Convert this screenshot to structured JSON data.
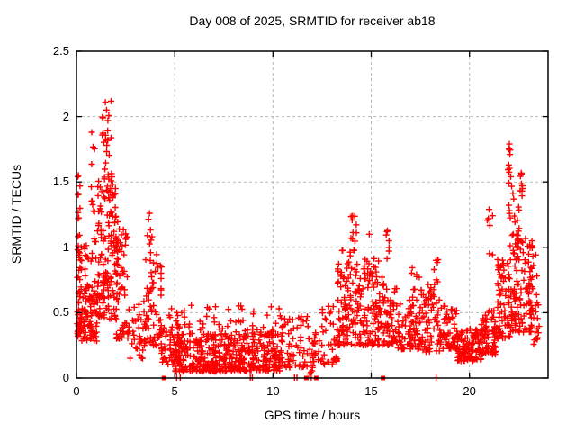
{
  "title": "Day 008 of 2025, SRMTID for receiver ab18",
  "x_axis": {
    "label": "GPS time / hours",
    "tick_values": [
      0,
      5,
      10,
      15,
      20
    ],
    "tick_labels": [
      "0",
      "5",
      "10",
      "15",
      "20"
    ],
    "range": [
      0,
      24
    ]
  },
  "y_axis": {
    "label": "SRMTID / TECUs",
    "tick_values": [
      0,
      0.5,
      1,
      1.5,
      2,
      2.5
    ],
    "tick_labels": [
      "0",
      "0.5",
      "1",
      "1.5",
      "2",
      "2.5"
    ],
    "range": [
      0,
      2.5
    ]
  },
  "colors": {
    "marker": "#ff0000",
    "grid": "#b8b8b8",
    "axis": "#000000",
    "background": "#ffffff"
  },
  "chart_data": {
    "type": "scatter",
    "title": "Day 008 of 2025, SRMTID for receiver ab18",
    "xlabel": "GPS time / hours",
    "ylabel": "SRMTID / TECUs",
    "xlim": [
      0,
      24
    ],
    "ylim": [
      0,
      2.5
    ],
    "grid": "dashed gray at x=5,10,15,20 and y=0.5,1,1.5,2",
    "legend": "none",
    "marker": "plus",
    "marker_color": "#ff0000",
    "description": "Dense red '+' scatter of SRMTID vs GPS time. High variance clusters near 0-2.5h (peak ~2.1 TECUs at ~1.5h) and 21.5-23.5h (peak ~1.8 at ~22h); dense low band 0.05-0.35 TECUs between 5h and 10h; secondary bumps at ~3.7h (1.26), ~14h (1.24), ~15.8h (1.12), ~21h (1.29). Red filled squares and small vertical marks sit on the y=0 axis line. Clusters below give digitized point-density regions [x0,x1]x[y0,y1] with point count n and bottom-bias exponent.",
    "notable_points": [
      [
        0.1,
        1.55
      ],
      [
        0.78,
        1.88
      ],
      [
        1.47,
        2.11
      ],
      [
        1.53,
        2.05
      ],
      [
        1.6,
        1.97
      ],
      [
        3.72,
        1.26
      ],
      [
        14.05,
        1.24
      ],
      [
        14.9,
        1.1
      ],
      [
        15.8,
        1.12
      ],
      [
        18.3,
        0.9
      ],
      [
        21.0,
        1.29
      ],
      [
        22.03,
        1.79
      ],
      [
        22.06,
        1.71
      ],
      [
        22.0,
        1.63
      ],
      [
        22.65,
        1.56
      ],
      [
        22.7,
        1.45
      ]
    ],
    "zero_line_squares": [
      4.45,
      11.7,
      12.2,
      15.6
    ],
    "zero_line_ticks": [
      5.1,
      5.28,
      8.85,
      8.95,
      11.1,
      11.22,
      11.95,
      18.3
    ],
    "clusters": [
      {
        "x": [
          0.03,
          0.25
        ],
        "y": [
          0.3,
          1.0
        ],
        "n": 45,
        "bias": 1.5
      },
      {
        "x": [
          0.05,
          0.18
        ],
        "y": [
          0.95,
          1.58
        ],
        "n": 14,
        "bias": 1.0
      },
      {
        "x": [
          0.25,
          1.05
        ],
        "y": [
          0.28,
          1.1
        ],
        "n": 95,
        "bias": 1.4
      },
      {
        "x": [
          0.6,
          0.95
        ],
        "y": [
          1.25,
          1.9
        ],
        "n": 9,
        "bias": 1.0
      },
      {
        "x": [
          1.05,
          2.1
        ],
        "y": [
          0.45,
          1.55
        ],
        "n": 150,
        "bias": 1.2
      },
      {
        "x": [
          1.3,
          1.8
        ],
        "y": [
          1.55,
          2.12
        ],
        "n": 20,
        "bias": 1.1
      },
      {
        "x": [
          2.0,
          2.65
        ],
        "y": [
          0.3,
          1.15
        ],
        "n": 55,
        "bias": 1.4
      },
      {
        "x": [
          2.6,
          3.5
        ],
        "y": [
          0.15,
          0.6
        ],
        "n": 35,
        "bias": 1.3
      },
      {
        "x": [
          3.5,
          4.35
        ],
        "y": [
          0.25,
          0.95
        ],
        "n": 65,
        "bias": 1.5
      },
      {
        "x": [
          3.6,
          3.95
        ],
        "y": [
          0.95,
          1.27
        ],
        "n": 7,
        "bias": 1.0
      },
      {
        "x": [
          4.3,
          5.3
        ],
        "y": [
          0.1,
          0.55
        ],
        "n": 60,
        "bias": 1.6
      },
      {
        "x": [
          5.0,
          10.35
        ],
        "y": [
          0.05,
          0.34
        ],
        "n": 430,
        "bias": 1.7
      },
      {
        "x": [
          5.2,
          10.35
        ],
        "y": [
          0.32,
          0.56
        ],
        "n": 65,
        "bias": 1.4
      },
      {
        "x": [
          10.35,
          11.8
        ],
        "y": [
          0.08,
          0.48
        ],
        "n": 70,
        "bias": 1.5
      },
      {
        "x": [
          11.8,
          12.45
        ],
        "y": [
          0.03,
          0.35
        ],
        "n": 28,
        "bias": 1.3
      },
      {
        "x": [
          12.45,
          13.3
        ],
        "y": [
          0.1,
          0.55
        ],
        "n": 40,
        "bias": 1.3
      },
      {
        "x": [
          13.3,
          14.4
        ],
        "y": [
          0.25,
          0.98
        ],
        "n": 110,
        "bias": 1.4
      },
      {
        "x": [
          13.9,
          14.25
        ],
        "y": [
          0.98,
          1.25
        ],
        "n": 9,
        "bias": 1.0
      },
      {
        "x": [
          14.4,
          15.4
        ],
        "y": [
          0.25,
          0.92
        ],
        "n": 90,
        "bias": 1.5
      },
      {
        "x": [
          15.4,
          16.3
        ],
        "y": [
          0.25,
          0.78
        ],
        "n": 70,
        "bias": 1.4
      },
      {
        "x": [
          15.7,
          15.95
        ],
        "y": [
          0.85,
          1.13
        ],
        "n": 6,
        "bias": 1.0
      },
      {
        "x": [
          16.3,
          17.5
        ],
        "y": [
          0.22,
          0.62
        ],
        "n": 80,
        "bias": 1.4
      },
      {
        "x": [
          17.0,
          17.45
        ],
        "y": [
          0.6,
          0.85
        ],
        "n": 7,
        "bias": 1.0
      },
      {
        "x": [
          17.5,
          18.5
        ],
        "y": [
          0.2,
          0.72
        ],
        "n": 70,
        "bias": 1.4
      },
      {
        "x": [
          18.2,
          18.45
        ],
        "y": [
          0.72,
          0.92
        ],
        "n": 5,
        "bias": 1.0
      },
      {
        "x": [
          18.5,
          19.4
        ],
        "y": [
          0.22,
          0.56
        ],
        "n": 70,
        "bias": 1.4
      },
      {
        "x": [
          19.4,
          20.6
        ],
        "y": [
          0.13,
          0.38
        ],
        "n": 115,
        "bias": 1.5
      },
      {
        "x": [
          20.6,
          21.4
        ],
        "y": [
          0.18,
          0.52
        ],
        "n": 70,
        "bias": 1.4
      },
      {
        "x": [
          20.9,
          21.2
        ],
        "y": [
          0.85,
          1.3
        ],
        "n": 6,
        "bias": 1.0
      },
      {
        "x": [
          21.4,
          22.3
        ],
        "y": [
          0.3,
          0.92
        ],
        "n": 90,
        "bias": 1.3
      },
      {
        "x": [
          21.95,
          22.15
        ],
        "y": [
          1.5,
          1.8
        ],
        "n": 7,
        "bias": 1.0
      },
      {
        "x": [
          22.0,
          22.6
        ],
        "y": [
          0.9,
          1.5
        ],
        "n": 28,
        "bias": 1.2
      },
      {
        "x": [
          22.3,
          23.2
        ],
        "y": [
          0.35,
          1.1
        ],
        "n": 85,
        "bias": 1.3
      },
      {
        "x": [
          22.55,
          22.8
        ],
        "y": [
          1.35,
          1.6
        ],
        "n": 7,
        "bias": 1.0
      },
      {
        "x": [
          23.0,
          23.55
        ],
        "y": [
          0.25,
          0.95
        ],
        "n": 38,
        "bias": 1.3
      }
    ]
  }
}
